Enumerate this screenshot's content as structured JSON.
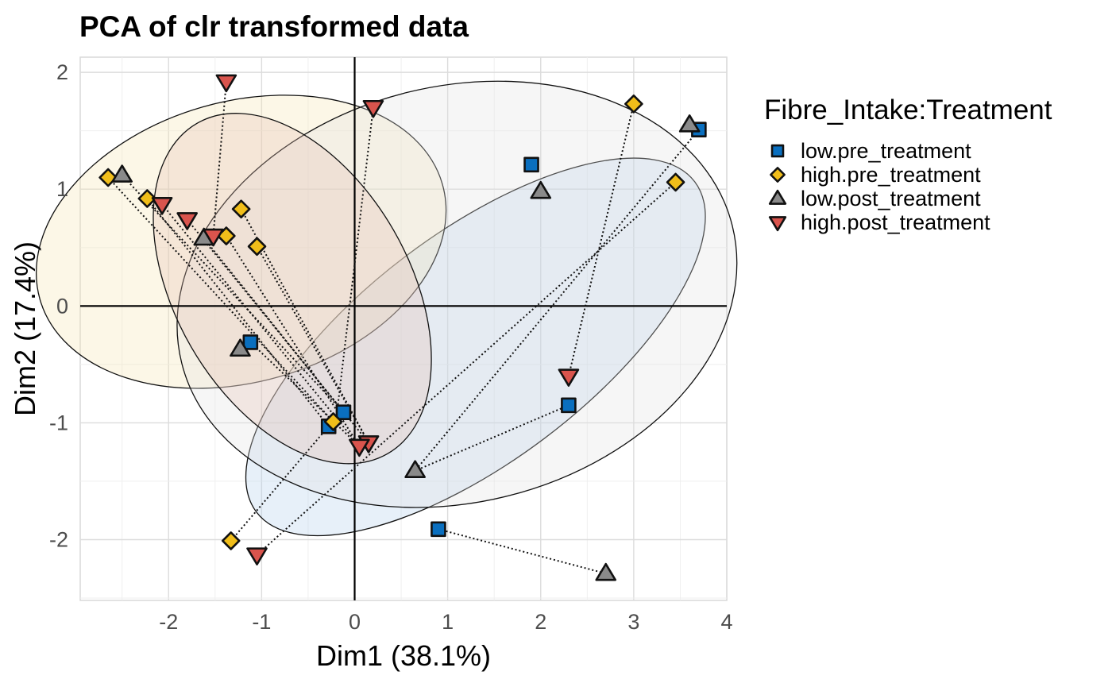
{
  "chart_data": {
    "type": "scatter",
    "title": "PCA of clr transformed data",
    "xlabel": "Dim1 (38.1%)",
    "ylabel": "Dim2 (17.4%)",
    "xlim": [
      -2.95,
      4.0
    ],
    "ylim": [
      -2.52,
      2.13
    ],
    "xticks": [
      -2,
      -1,
      0,
      1,
      2,
      3,
      4
    ],
    "yticks": [
      -2,
      -1,
      0,
      1,
      2
    ],
    "xtick_labels": [
      "-2",
      "-1",
      "0",
      "1",
      "2",
      "3",
      "4"
    ],
    "ytick_labels": [
      "-2",
      "-1",
      "0",
      "1",
      "2"
    ],
    "grid": true,
    "legend_title": "Fibre_Intake:Treatment",
    "legend_position": "right",
    "series": [
      {
        "name": "low.pre_treatment",
        "shape": "square",
        "color": "#0A6FBF",
        "points": [
          [
            1.9,
            1.21
          ],
          [
            3.7,
            1.51
          ],
          [
            -1.12,
            -0.31
          ],
          [
            -0.12,
            -0.91
          ],
          [
            -0.28,
            -1.03
          ],
          [
            2.3,
            -0.85
          ],
          [
            0.9,
            -1.91
          ]
        ]
      },
      {
        "name": "high.pre_treatment",
        "shape": "diamond",
        "color": "#F1BE1A",
        "points": [
          [
            -2.65,
            1.1
          ],
          [
            -2.23,
            0.92
          ],
          [
            -1.22,
            0.83
          ],
          [
            -1.38,
            0.6
          ],
          [
            -1.05,
            0.51
          ],
          [
            3.0,
            1.73
          ],
          [
            3.45,
            1.06
          ],
          [
            -0.23,
            -0.99
          ],
          [
            -1.33,
            -2.01
          ]
        ]
      },
      {
        "name": "low.post_treatment",
        "shape": "triangle-up",
        "color": "#8A8A8A",
        "points": [
          [
            -2.5,
            1.12
          ],
          [
            -1.62,
            0.58
          ],
          [
            -1.23,
            -0.37
          ],
          [
            2.0,
            0.98
          ],
          [
            3.6,
            1.55
          ],
          [
            0.65,
            -1.41
          ],
          [
            2.7,
            -2.29
          ]
        ]
      },
      {
        "name": "high.post_treatment",
        "shape": "triangle-down",
        "color": "#D9544D",
        "points": [
          [
            -1.38,
            1.92
          ],
          [
            0.2,
            1.7
          ],
          [
            -2.07,
            0.87
          ],
          [
            -1.8,
            0.74
          ],
          [
            -1.52,
            0.6
          ],
          [
            2.3,
            -0.6
          ],
          [
            0.15,
            -1.17
          ],
          [
            0.05,
            -1.2
          ],
          [
            -1.05,
            -2.13
          ]
        ]
      }
    ],
    "ellipses": [
      {
        "group": "low.pre_treatment",
        "cx": 1.3,
        "cy": -0.35,
        "rx": 2.95,
        "ry": 0.98,
        "angle_deg": 37,
        "color": "#AFCDEB"
      },
      {
        "group": "high.pre_treatment",
        "cx": -1.22,
        "cy": 0.55,
        "rx": 2.25,
        "ry": 1.2,
        "angle_deg": 16,
        "color": "#F5E3AF"
      },
      {
        "group": "low.post_treatment",
        "cx": 1.1,
        "cy": 0.1,
        "rx": 3.05,
        "ry": 1.78,
        "angle_deg": 14,
        "color": "#E0E0E0"
      },
      {
        "group": "high.post_treatment",
        "cx": -0.67,
        "cy": 0.15,
        "rx": 2.05,
        "ry": 1.0,
        "angle_deg": -60,
        "color": "#E4BFB3"
      }
    ],
    "connections": [
      [
        [
          -2.65,
          1.1
        ],
        [
          -0.23,
          -0.99
        ]
      ],
      [
        [
          -2.5,
          1.12
        ],
        [
          -0.12,
          -0.91
        ]
      ],
      [
        [
          -2.23,
          0.92
        ],
        [
          -0.28,
          -1.03
        ]
      ],
      [
        [
          -2.07,
          0.87
        ],
        [
          0.05,
          -1.2
        ]
      ],
      [
        [
          -1.8,
          0.74
        ],
        [
          0.15,
          -1.17
        ]
      ],
      [
        [
          -1.62,
          0.58
        ],
        [
          -0.12,
          -0.91
        ]
      ],
      [
        [
          -1.38,
          0.6
        ],
        [
          0.05,
          -1.2
        ]
      ],
      [
        [
          -1.22,
          0.83
        ],
        [
          0.15,
          -1.17
        ]
      ],
      [
        [
          -1.05,
          0.51
        ],
        [
          0.15,
          -1.17
        ]
      ],
      [
        [
          -1.38,
          1.92
        ],
        [
          -1.52,
          0.6
        ]
      ],
      [
        [
          0.2,
          1.7
        ],
        [
          -0.2,
          -0.98
        ]
      ],
      [
        [
          -1.23,
          -0.37
        ],
        [
          -1.12,
          -0.31
        ]
      ],
      [
        [
          -1.12,
          -0.31
        ],
        [
          0.05,
          -1.2
        ]
      ],
      [
        [
          3.0,
          1.73
        ],
        [
          2.3,
          -0.6
        ]
      ],
      [
        [
          3.7,
          1.51
        ],
        [
          0.65,
          -1.41
        ]
      ],
      [
        [
          3.45,
          1.06
        ],
        [
          -1.05,
          -2.13
        ]
      ],
      [
        [
          -1.33,
          -2.01
        ],
        [
          -0.28,
          -1.03
        ]
      ],
      [
        [
          2.3,
          -0.85
        ],
        [
          0.65,
          -1.41
        ]
      ],
      [
        [
          0.9,
          -1.91
        ],
        [
          2.7,
          -2.29
        ]
      ]
    ]
  }
}
